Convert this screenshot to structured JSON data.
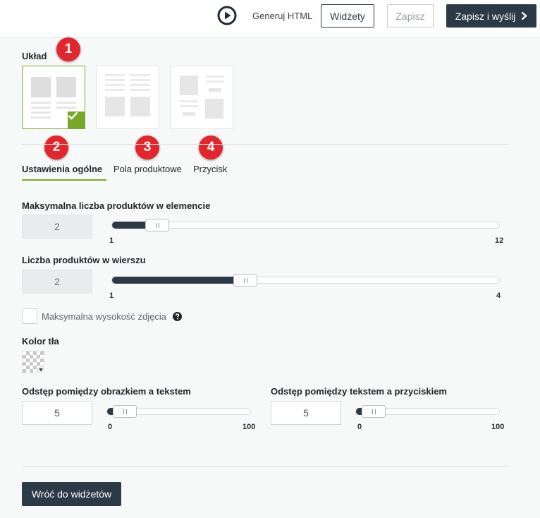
{
  "toolbar": {
    "play_icon": "play-circle-icon",
    "generate_html_label": "Generuj HTML",
    "widgets_label": "Widżety",
    "save_label": "Zapisz",
    "save_send_label": "Zapisz i wyślij",
    "save_send_icon": "chevron-right-icon"
  },
  "layout_section": {
    "title": "Układ",
    "options": [
      {
        "name": "layout-option-1",
        "selected": true
      },
      {
        "name": "layout-option-2",
        "selected": false
      },
      {
        "name": "layout-option-3",
        "selected": false
      }
    ],
    "check_icon": "check-icon"
  },
  "badges": [
    "1",
    "2",
    "3",
    "4"
  ],
  "badge_color": "#e3262d",
  "tabs": [
    {
      "label": "Ustawienia ogólne",
      "active": true
    },
    {
      "label": "Pola produktowe",
      "active": false
    },
    {
      "label": "Przycisk",
      "active": false
    }
  ],
  "accent_color": "#78a82a",
  "fields": {
    "max_products": {
      "label": "Maksymalna liczba produktów w elemencie",
      "value": "2",
      "min_label": "1",
      "max_label": "12",
      "min": 1,
      "max": 12,
      "current": 2
    },
    "products_per_row": {
      "label": "Liczba produktów w wierszu",
      "value": "2",
      "min_label": "1",
      "max_label": "4",
      "min": 1,
      "max": 4,
      "current": 2
    },
    "max_image_height": {
      "label": "Maksymalna wysokość zdjęcia",
      "checked": false,
      "help_icon": "question-circle-icon"
    },
    "background_color": {
      "label": "Kolor tła",
      "value": "transparent"
    },
    "image_text_spacing": {
      "label": "Odstęp pomiędzy obrazkiem a tekstem",
      "value": "5",
      "min_label": "0",
      "max_label": "100",
      "min": 0,
      "max": 100,
      "current": 5
    },
    "text_button_spacing": {
      "label": "Odstęp pomiędzy tekstem a przyciskiem",
      "value": "5",
      "min_label": "0",
      "max_label": "100",
      "min": 0,
      "max": 100,
      "current": 5
    }
  },
  "footer": {
    "back_label": "Wróć do widżetów"
  },
  "dark_color": "#2c3a47"
}
